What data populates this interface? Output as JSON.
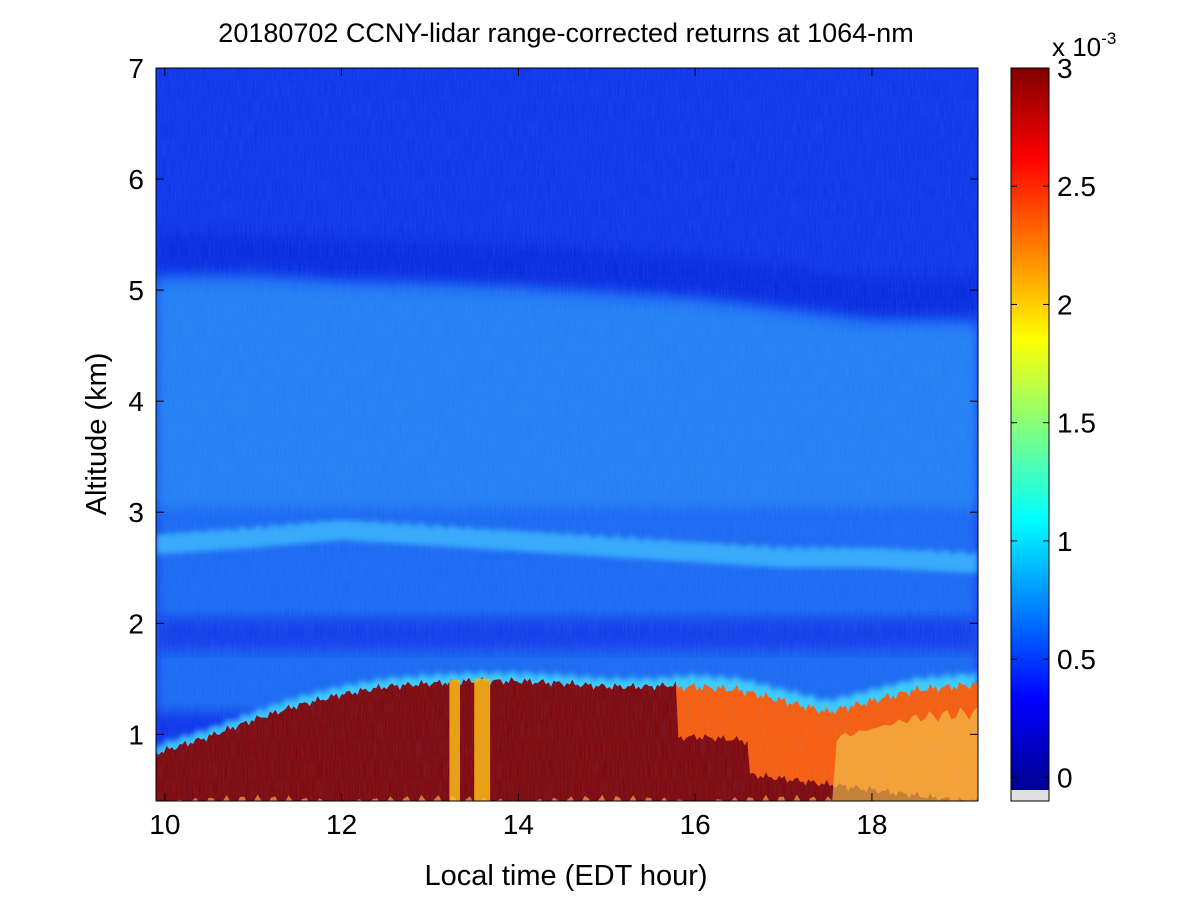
{
  "chart_data": {
    "type": "heatmap",
    "title": "20180702 CCNY-lidar range-corrected returns at 1064-nm",
    "xlabel": "Local time (EDT hour)",
    "ylabel": "Altitude (km)",
    "xlim": [
      9.9,
      19.2
    ],
    "ylim": [
      0.4,
      7
    ],
    "x_ticks": [
      10,
      12,
      14,
      16,
      18
    ],
    "y_ticks": [
      1,
      2,
      3,
      4,
      5,
      6,
      7
    ],
    "colorbar": {
      "colormap": "jet",
      "range": [
        -0.1,
        3
      ],
      "ticks": [
        0,
        0.5,
        1,
        1.5,
        2,
        2.5,
        3
      ],
      "tick_labels": [
        "0",
        "0.5",
        "1",
        "1.5",
        "2",
        "2.5",
        "3"
      ],
      "exponent_label": "x 10",
      "exponent_power": "-3"
    },
    "layers": {
      "boundary_layer_top_km": [
        [
          9.9,
          0.85
        ],
        [
          10.5,
          1.0
        ],
        [
          11.0,
          1.15
        ],
        [
          11.5,
          1.28
        ],
        [
          12.0,
          1.38
        ],
        [
          12.5,
          1.45
        ],
        [
          13.0,
          1.48
        ],
        [
          13.5,
          1.5
        ],
        [
          14.0,
          1.5
        ],
        [
          14.5,
          1.48
        ],
        [
          15.0,
          1.45
        ],
        [
          15.5,
          1.45
        ],
        [
          16.0,
          1.48
        ],
        [
          16.5,
          1.45
        ],
        [
          17.0,
          1.35
        ],
        [
          17.5,
          1.25
        ],
        [
          18.0,
          1.35
        ],
        [
          18.5,
          1.45
        ],
        [
          19.2,
          1.5
        ]
      ],
      "elevated_aerosol_layer_km": [
        [
          9.9,
          2.72
        ],
        [
          11.0,
          2.78
        ],
        [
          12.0,
          2.85
        ],
        [
          13.0,
          2.8
        ],
        [
          14.0,
          2.75
        ],
        [
          15.0,
          2.7
        ],
        [
          16.0,
          2.65
        ],
        [
          17.0,
          2.6
        ],
        [
          18.0,
          2.6
        ],
        [
          19.2,
          2.55
        ]
      ],
      "free_troposphere_top_km": [
        [
          9.9,
          5.15
        ],
        [
          11.0,
          5.15
        ],
        [
          12.0,
          5.1
        ],
        [
          13.0,
          5.08
        ],
        [
          14.0,
          5.05
        ],
        [
          15.0,
          5.0
        ],
        [
          16.0,
          4.95
        ],
        [
          17.0,
          4.85
        ],
        [
          18.0,
          4.75
        ],
        [
          19.2,
          4.75
        ]
      ]
    }
  }
}
